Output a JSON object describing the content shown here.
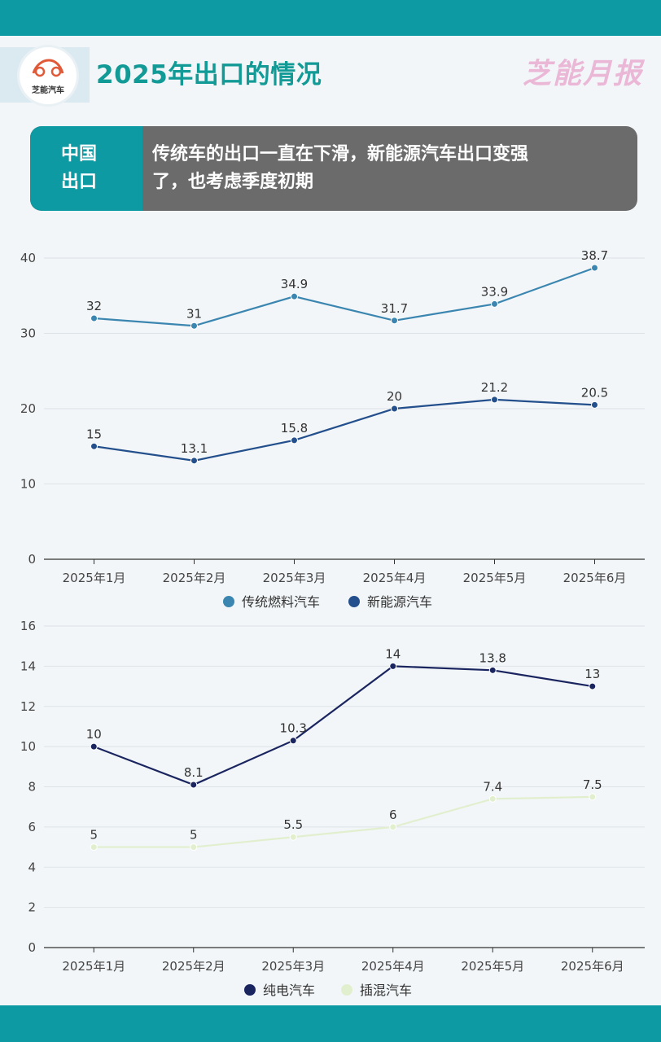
{
  "header": {
    "logo_text": "芝能汽车",
    "title": "2025年出口的情况",
    "brand": "芝能月报"
  },
  "banner": {
    "label_line1": "中国",
    "label_line2": "出口",
    "text_line1": "传统车的出口一直在下滑，新能源汽车出口变强",
    "text_line2": "了，也考虑季度初期"
  },
  "chart_data": [
    {
      "type": "line",
      "categories": [
        "2025年1月",
        "2025年2月",
        "2025年3月",
        "2025年4月",
        "2025年5月",
        "2025年6月"
      ],
      "series": [
        {
          "name": "传统燃料汽车",
          "color": "#3b86b0",
          "values": [
            32,
            31,
            34.9,
            31.7,
            33.9,
            38.7
          ]
        },
        {
          "name": "新能源汽车",
          "color": "#234f8c",
          "values": [
            15,
            13.1,
            15.8,
            20,
            21.2,
            20.5
          ]
        }
      ],
      "ylim": [
        0,
        40
      ],
      "yticks": [
        0,
        10,
        20,
        30,
        40
      ],
      "grid": true,
      "legend": "bottom-center"
    },
    {
      "type": "line",
      "categories": [
        "2025年1月",
        "2025年2月",
        "2025年3月",
        "2025年4月",
        "2025年5月",
        "2025年6月"
      ],
      "series": [
        {
          "name": "纯电汽车",
          "color": "#1a2560",
          "values": [
            10,
            8.1,
            10.3,
            14,
            13.8,
            13
          ]
        },
        {
          "name": "插混汽车",
          "color": "#e2efcf",
          "values": [
            5,
            5,
            5.5,
            6,
            7.4,
            7.5
          ]
        }
      ],
      "ylim": [
        0,
        16
      ],
      "yticks": [
        0,
        2,
        4,
        6,
        8,
        10,
        12,
        14,
        16
      ],
      "grid": true,
      "legend": "bottom-center"
    }
  ]
}
